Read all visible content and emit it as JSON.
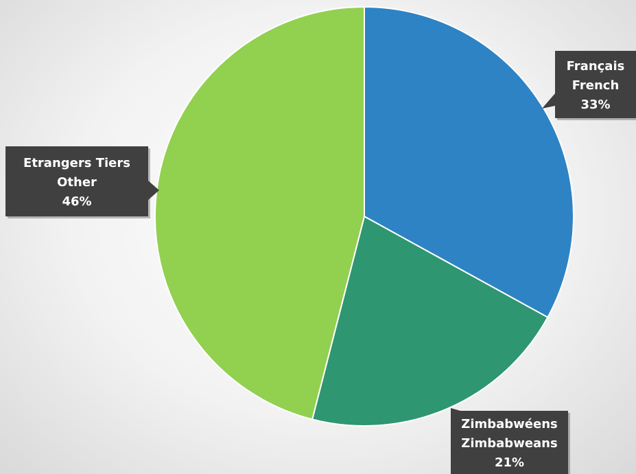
{
  "chart_data": {
    "type": "pie",
    "title": "",
    "slices": [
      {
        "label_fr": "Français",
        "label_en": "French",
        "value": 33,
        "value_label": "33%",
        "color": "#2e83c4"
      },
      {
        "label_fr": "Zimbabwéens",
        "label_en": "Zimbabweans",
        "value": 21,
        "value_label": "21%",
        "color": "#2e9670"
      },
      {
        "label_fr": "Etrangers Tiers",
        "label_en": "Other",
        "value": 46,
        "value_label": "46%",
        "color": "#92d050"
      }
    ],
    "callout_color": "#404040"
  }
}
